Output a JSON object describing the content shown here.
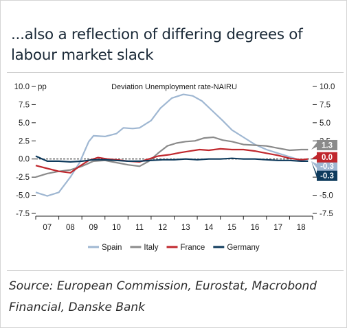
{
  "title": "...also a reflection of differing degrees of labour market slack",
  "source": "Source: European Commission, Eurostat, Macrobond Financial, Danske Bank",
  "chart_data": {
    "type": "line",
    "annotation": "Deviation Unemployment rate-NAIRU",
    "unit_label": "pp",
    "ylim": [
      -7.5,
      10.0
    ],
    "yticks": [
      "10.0",
      "7.5",
      "5.0",
      "2.5",
      "0.0",
      "-2.5",
      "-5.0",
      "-7.5"
    ],
    "right_yticks": [
      "10.0",
      "7.5",
      "5.0",
      "2.5",
      "0.0",
      "-2.5",
      "-5.0",
      "-7.5"
    ],
    "xlim": [
      2006.5,
      2018.5
    ],
    "xticks": [
      "07",
      "08",
      "09",
      "10",
      "11",
      "12",
      "13",
      "14",
      "15",
      "16",
      "17",
      "18"
    ],
    "legend_position": "bottom",
    "series": [
      {
        "name": "Spain",
        "color": "#9fb7d2",
        "last_label": "-0.3",
        "points": [
          [
            2006.5,
            -4.6
          ],
          [
            2007.0,
            -5.1
          ],
          [
            2007.5,
            -4.6
          ],
          [
            2008.0,
            -2.5
          ],
          [
            2008.4,
            -0.5
          ],
          [
            2008.8,
            2.4
          ],
          [
            2009.0,
            3.2
          ],
          [
            2009.5,
            3.1
          ],
          [
            2010.0,
            3.5
          ],
          [
            2010.3,
            4.3
          ],
          [
            2010.7,
            4.2
          ],
          [
            2011.0,
            4.3
          ],
          [
            2011.5,
            5.3
          ],
          [
            2011.9,
            7.0
          ],
          [
            2012.4,
            8.4
          ],
          [
            2012.9,
            8.9
          ],
          [
            2013.3,
            8.7
          ],
          [
            2013.7,
            8.0
          ],
          [
            2014.2,
            6.5
          ],
          [
            2014.6,
            5.3
          ],
          [
            2015.0,
            4.0
          ],
          [
            2015.5,
            3.0
          ],
          [
            2016.0,
            2.0
          ],
          [
            2016.5,
            1.3
          ],
          [
            2017.0,
            0.8
          ],
          [
            2017.5,
            0.3
          ],
          [
            2018.0,
            -0.2
          ],
          [
            2018.3,
            -0.3
          ]
        ]
      },
      {
        "name": "Italy",
        "color": "#8a8a8a",
        "last_label": "1.3",
        "points": [
          [
            2006.5,
            -2.5
          ],
          [
            2007.0,
            -2.0
          ],
          [
            2007.5,
            -1.7
          ],
          [
            2008.0,
            -1.5
          ],
          [
            2008.5,
            -1.0
          ],
          [
            2009.0,
            -0.3
          ],
          [
            2009.5,
            -0.2
          ],
          [
            2010.0,
            -0.5
          ],
          [
            2010.5,
            -0.8
          ],
          [
            2011.0,
            -1.0
          ],
          [
            2011.4,
            -0.3
          ],
          [
            2011.8,
            0.8
          ],
          [
            2012.2,
            1.8
          ],
          [
            2012.6,
            2.2
          ],
          [
            2013.0,
            2.4
          ],
          [
            2013.4,
            2.5
          ],
          [
            2013.8,
            2.9
          ],
          [
            2014.2,
            3.0
          ],
          [
            2014.6,
            2.6
          ],
          [
            2015.0,
            2.4
          ],
          [
            2015.5,
            2.0
          ],
          [
            2016.0,
            1.9
          ],
          [
            2016.5,
            1.8
          ],
          [
            2017.0,
            1.5
          ],
          [
            2017.5,
            1.2
          ],
          [
            2018.0,
            1.3
          ],
          [
            2018.3,
            1.3
          ]
        ]
      },
      {
        "name": "France",
        "color": "#c0272d",
        "last_label": "0.0",
        "points": [
          [
            2006.5,
            -0.9
          ],
          [
            2007.0,
            -1.3
          ],
          [
            2007.5,
            -1.7
          ],
          [
            2008.0,
            -1.9
          ],
          [
            2008.4,
            -1.0
          ],
          [
            2008.8,
            -0.2
          ],
          [
            2009.2,
            0.2
          ],
          [
            2009.6,
            0.0
          ],
          [
            2010.0,
            -0.1
          ],
          [
            2010.5,
            -0.3
          ],
          [
            2011.0,
            -0.4
          ],
          [
            2011.4,
            0.0
          ],
          [
            2011.8,
            0.4
          ],
          [
            2012.3,
            0.6
          ],
          [
            2012.8,
            0.9
          ],
          [
            2013.2,
            1.1
          ],
          [
            2013.6,
            1.3
          ],
          [
            2014.0,
            1.2
          ],
          [
            2014.5,
            1.4
          ],
          [
            2015.0,
            1.3
          ],
          [
            2015.5,
            1.3
          ],
          [
            2016.0,
            1.1
          ],
          [
            2016.5,
            0.8
          ],
          [
            2017.0,
            0.5
          ],
          [
            2017.5,
            0.1
          ],
          [
            2018.0,
            -0.1
          ],
          [
            2018.3,
            0.0
          ]
        ]
      },
      {
        "name": "Germany",
        "color": "#0e3a5c",
        "last_label": "-0.3",
        "points": [
          [
            2006.5,
            0.4
          ],
          [
            2007.0,
            -0.3
          ],
          [
            2007.5,
            -0.3
          ],
          [
            2008.0,
            -0.4
          ],
          [
            2008.5,
            -0.3
          ],
          [
            2009.0,
            -0.1
          ],
          [
            2009.5,
            -0.1
          ],
          [
            2010.0,
            -0.2
          ],
          [
            2010.5,
            -0.3
          ],
          [
            2011.0,
            -0.3
          ],
          [
            2011.5,
            -0.2
          ],
          [
            2012.0,
            -0.1
          ],
          [
            2012.5,
            -0.1
          ],
          [
            2013.0,
            0.0
          ],
          [
            2013.5,
            -0.1
          ],
          [
            2014.0,
            0.0
          ],
          [
            2014.5,
            0.0
          ],
          [
            2015.0,
            0.1
          ],
          [
            2015.5,
            0.0
          ],
          [
            2016.0,
            0.0
          ],
          [
            2016.5,
            -0.1
          ],
          [
            2017.0,
            -0.2
          ],
          [
            2017.5,
            -0.2
          ],
          [
            2018.0,
            -0.3
          ],
          [
            2018.3,
            -0.3
          ]
        ]
      }
    ]
  }
}
